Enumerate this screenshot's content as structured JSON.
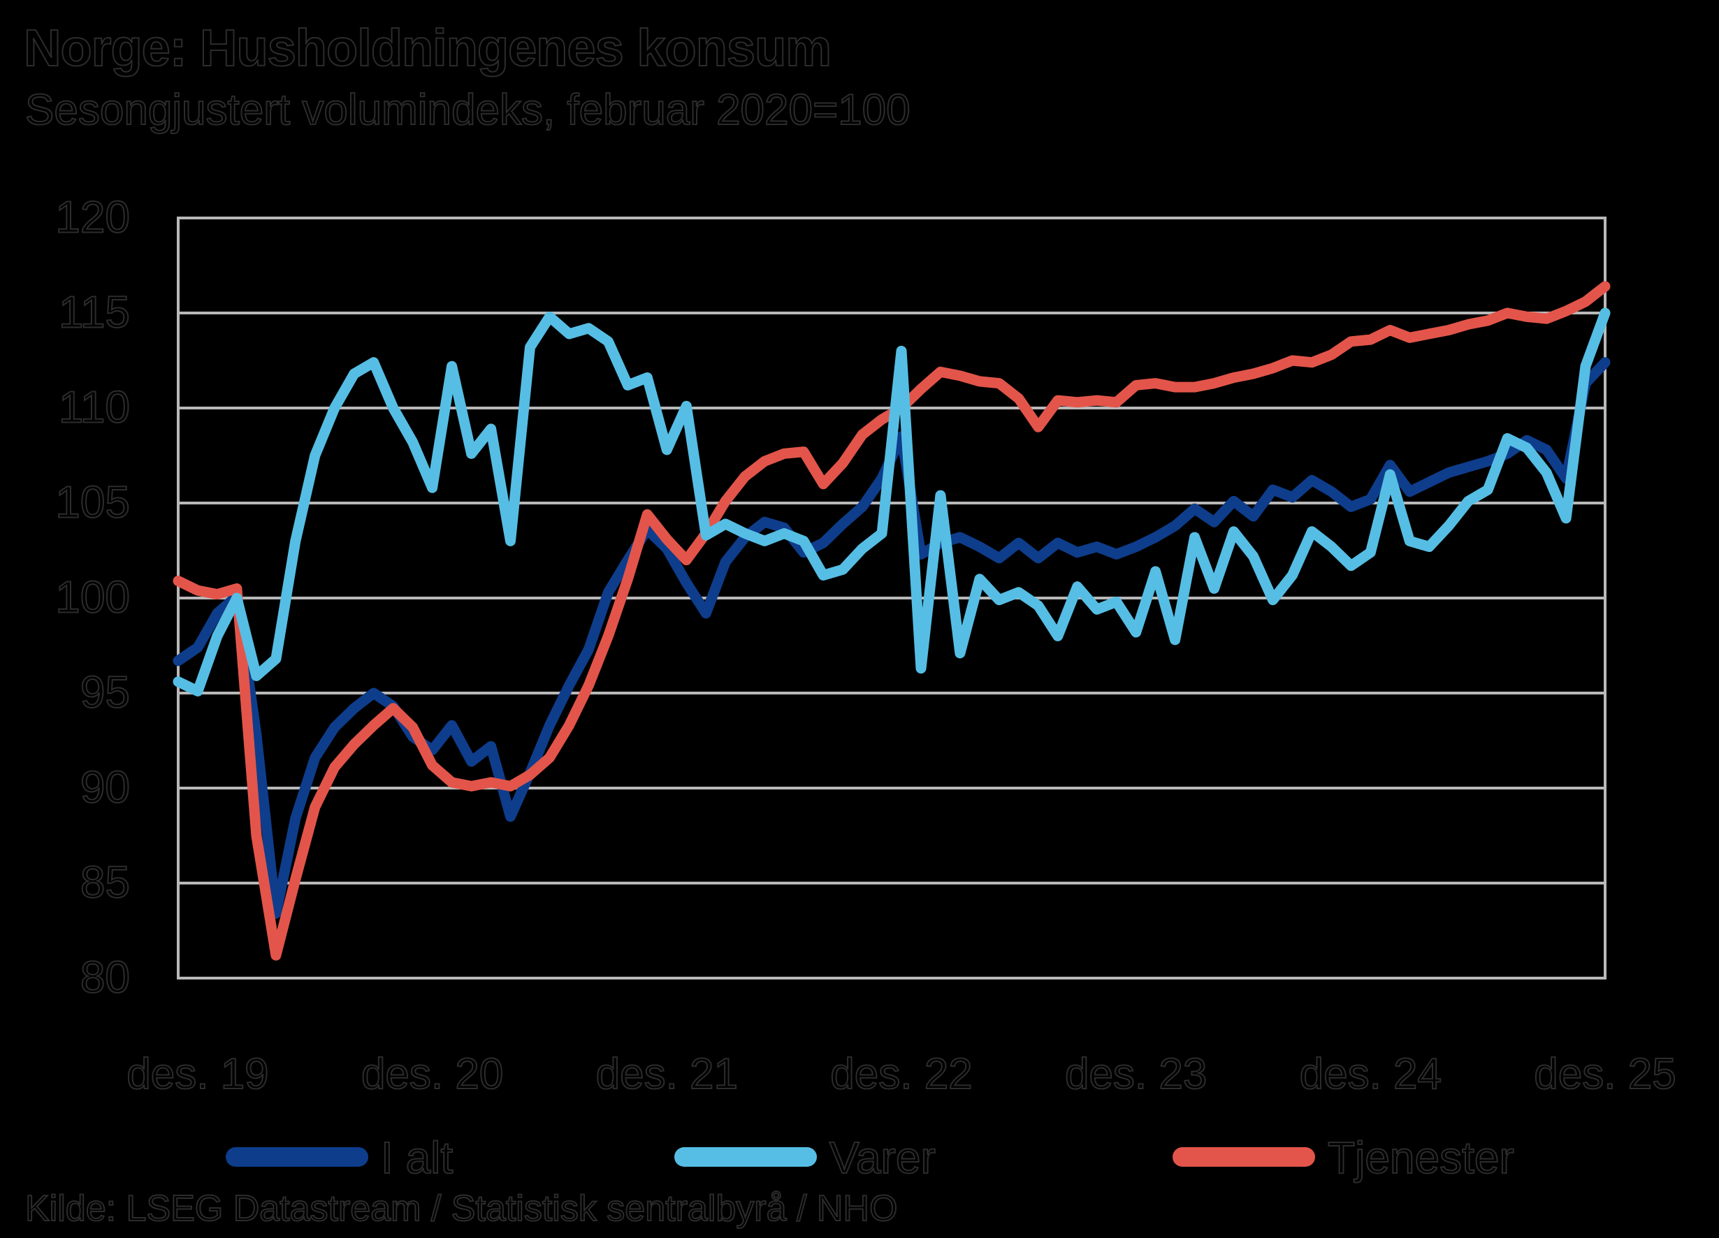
{
  "header": {
    "title": "Norge: Husholdningenes konsum",
    "subtitle": "Sesongjustert volumindeks, februar 2020=100"
  },
  "source": "Kilde: LSEG Datastream / Statistisk sentralbyrå / NHO",
  "colors": {
    "background": "#000000",
    "grid_and_border": "#b9b9b9",
    "ialt_blue": "#0E3D8C",
    "varer_lightblue": "#56BEE4",
    "tjenester_red": "#E3554A"
  },
  "chart_data": {
    "type": "line",
    "title": "Norge: Husholdningenes konsum",
    "subtitle": "Sesongjustert volumindeks, februar 2020=100",
    "frequency": "monthly",
    "x_start": "nov. 2019",
    "x_end": "des. 2025",
    "x_tick_labels": [
      "des. 19",
      "des. 20",
      "des. 21",
      "des. 22",
      "des. 23",
      "des. 24",
      "des. 25"
    ],
    "x_tick_month_index": [
      1,
      13,
      25,
      37,
      49,
      61,
      73
    ],
    "y_tick_labels": [
      "120",
      "115",
      "110",
      "105",
      "100",
      "95",
      "90",
      "85",
      "80"
    ],
    "y_tick_values": [
      120,
      115,
      110,
      105,
      100,
      95,
      90,
      85,
      80
    ],
    "ylim": [
      80,
      120
    ],
    "grid": "horizontal-only",
    "legend_position": "bottom",
    "series": [
      {
        "name": "I alt",
        "color": "#0E3D8C",
        "values": [
          96.7,
          97.4,
          99.2,
          100.1,
          92.8,
          83.4,
          88.4,
          91.6,
          93.2,
          94.2,
          95.0,
          94.3,
          92.7,
          92.0,
          93.3,
          91.4,
          92.2,
          88.5,
          90.8,
          93.3,
          95.4,
          97.3,
          100.3,
          102.0,
          103.6,
          102.6,
          100.8,
          99.2,
          101.9,
          103.2,
          104.0,
          103.7,
          102.4,
          102.9,
          103.9,
          104.8,
          106.3,
          108.5,
          102.3,
          102.9,
          103.2,
          102.7,
          102.1,
          102.9,
          102.1,
          102.9,
          102.4,
          102.7,
          102.3,
          102.7,
          103.2,
          103.8,
          104.7,
          104.0,
          105.1,
          104.3,
          105.7,
          105.3,
          106.2,
          105.6,
          104.8,
          105.2,
          107.0,
          105.6,
          106.1,
          106.6,
          106.9,
          107.2,
          107.6,
          108.3,
          107.8,
          106.3,
          111.3,
          112.4
        ]
      },
      {
        "name": "Varer",
        "color": "#56BEE4",
        "values": [
          95.6,
          95.1,
          98.0,
          100.0,
          95.9,
          96.8,
          103.0,
          107.5,
          110.0,
          111.8,
          112.4,
          110.0,
          108.2,
          105.8,
          112.2,
          107.6,
          108.9,
          103.0,
          113.2,
          114.8,
          113.9,
          114.2,
          113.5,
          111.2,
          111.6,
          107.8,
          110.1,
          103.3,
          103.9,
          103.4,
          103.0,
          103.4,
          103.0,
          101.2,
          101.5,
          102.6,
          103.4,
          113.0,
          96.3,
          105.4,
          97.1,
          101.0,
          99.9,
          100.3,
          99.6,
          98.0,
          100.6,
          99.4,
          99.8,
          98.2,
          101.4,
          97.8,
          103.2,
          100.5,
          103.5,
          102.2,
          99.9,
          101.2,
          103.5,
          102.7,
          101.7,
          102.4,
          106.5,
          103.0,
          102.7,
          103.8,
          105.1,
          105.7,
          108.4,
          107.9,
          106.6,
          104.2,
          112.2,
          115.0
        ]
      },
      {
        "name": "Tjenester",
        "color": "#E3554A",
        "values": [
          100.9,
          100.4,
          100.2,
          100.5,
          87.5,
          81.2,
          85.2,
          89.0,
          91.1,
          92.3,
          93.3,
          94.2,
          93.2,
          91.2,
          90.3,
          90.1,
          90.3,
          90.1,
          90.7,
          91.6,
          93.3,
          95.4,
          98.0,
          101.0,
          104.4,
          103.1,
          102.0,
          103.4,
          105.1,
          106.4,
          107.2,
          107.6,
          107.7,
          106.0,
          107.1,
          108.6,
          109.4,
          110.0,
          111.0,
          111.9,
          111.7,
          111.4,
          111.3,
          110.5,
          109.0,
          110.4,
          110.3,
          110.4,
          110.3,
          111.2,
          111.3,
          111.1,
          111.1,
          111.3,
          111.6,
          111.8,
          112.1,
          112.5,
          112.4,
          112.8,
          113.5,
          113.6,
          114.1,
          113.7,
          113.9,
          114.1,
          114.4,
          114.6,
          115.0,
          114.8,
          114.7,
          115.1,
          115.6,
          116.4
        ]
      }
    ]
  },
  "legend": {
    "items": [
      {
        "label": "I alt"
      },
      {
        "label": "Varer"
      },
      {
        "label": "Tjenester"
      }
    ]
  }
}
